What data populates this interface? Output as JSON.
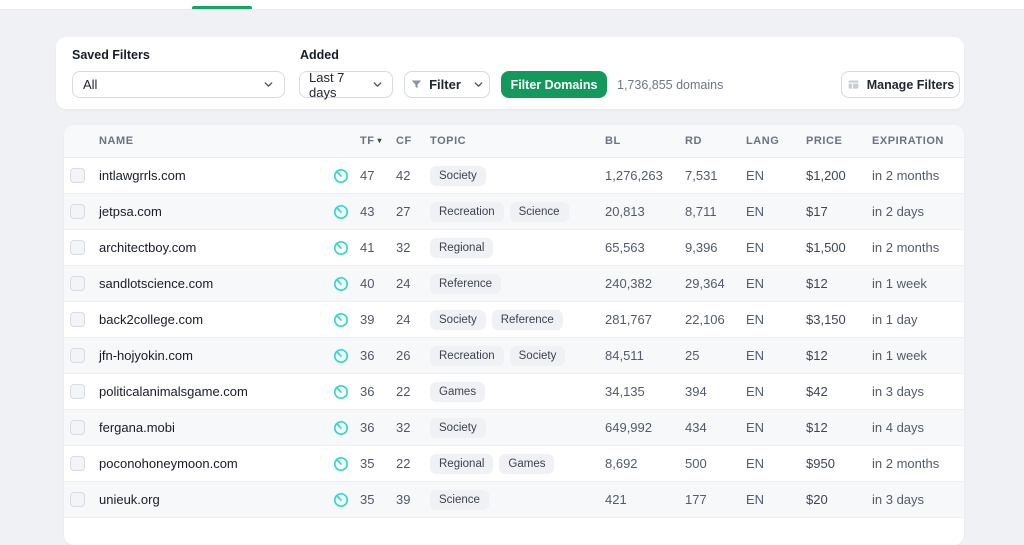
{
  "colors": {
    "page_bg": "#f0f1f4",
    "accent_green": "#12995b",
    "tab_indicator_green": "#16a563",
    "flow_icon_teal": "#35d6cc"
  },
  "icons": {
    "sort_desc": "▾"
  },
  "toolbar": {
    "saved_filters_label": "Saved Filters",
    "saved_filters_value": "All",
    "added_label": "Added",
    "added_value": "Last 7 days",
    "filter_button_label": "Filter",
    "filter_domains_button_label": "Filter Domains",
    "domains_count": "1,736,855 domains",
    "manage_filters_button_label": "Manage Filters"
  },
  "table": {
    "columns": {
      "name": "NAME",
      "tf": "TF",
      "cf": "CF",
      "topic": "TOPIC",
      "bl": "BL",
      "rd": "RD",
      "lang": "LANG",
      "price": "PRICE",
      "expiration": "EXPIRATION"
    },
    "sort": {
      "column": "TF",
      "direction": "desc"
    },
    "rows": [
      {
        "name": "intlawgrrls.com",
        "tf": "47",
        "cf": "42",
        "topics": [
          "Society"
        ],
        "bl": "1,276,263",
        "rd": "7,531",
        "lang": "EN",
        "price": "$1,200",
        "expiration": "in 2 months"
      },
      {
        "name": "jetpsa.com",
        "tf": "43",
        "cf": "27",
        "topics": [
          "Recreation",
          "Science"
        ],
        "bl": "20,813",
        "rd": "8,711",
        "lang": "EN",
        "price": "$17",
        "expiration": "in 2 days"
      },
      {
        "name": "architectboy.com",
        "tf": "41",
        "cf": "32",
        "topics": [
          "Regional"
        ],
        "bl": "65,563",
        "rd": "9,396",
        "lang": "EN",
        "price": "$1,500",
        "expiration": "in 2 months"
      },
      {
        "name": "sandlotscience.com",
        "tf": "40",
        "cf": "24",
        "topics": [
          "Reference"
        ],
        "bl": "240,382",
        "rd": "29,364",
        "lang": "EN",
        "price": "$12",
        "expiration": "in 1 week"
      },
      {
        "name": "back2college.com",
        "tf": "39",
        "cf": "24",
        "topics": [
          "Society",
          "Reference"
        ],
        "bl": "281,767",
        "rd": "22,106",
        "lang": "EN",
        "price": "$3,150",
        "expiration": "in 1 day"
      },
      {
        "name": "jfn-hojyokin.com",
        "tf": "36",
        "cf": "26",
        "topics": [
          "Recreation",
          "Society"
        ],
        "bl": "84,511",
        "rd": "25",
        "lang": "EN",
        "price": "$12",
        "expiration": "in 1 week"
      },
      {
        "name": "politicalanimalsgame.com",
        "tf": "36",
        "cf": "22",
        "topics": [
          "Games"
        ],
        "bl": "34,135",
        "rd": "394",
        "lang": "EN",
        "price": "$42",
        "expiration": "in 3 days"
      },
      {
        "name": "fergana.mobi",
        "tf": "36",
        "cf": "32",
        "topics": [
          "Society"
        ],
        "bl": "649,992",
        "rd": "434",
        "lang": "EN",
        "price": "$12",
        "expiration": "in 4 days"
      },
      {
        "name": "poconohoneymoon.com",
        "tf": "35",
        "cf": "22",
        "topics": [
          "Regional",
          "Games"
        ],
        "bl": "8,692",
        "rd": "500",
        "lang": "EN",
        "price": "$950",
        "expiration": "in 2 months"
      },
      {
        "name": "unieuk.org",
        "tf": "35",
        "cf": "39",
        "topics": [
          "Science"
        ],
        "bl": "421",
        "rd": "177",
        "lang": "EN",
        "price": "$20",
        "expiration": "in 3 days"
      }
    ]
  }
}
